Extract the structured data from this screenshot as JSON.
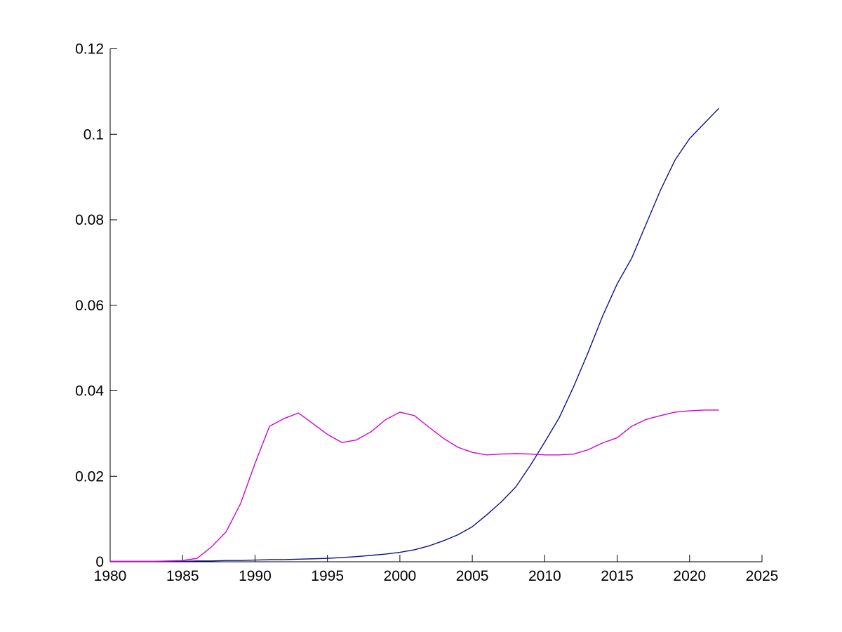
{
  "figure": {
    "background": "#ffffff",
    "axis_color": "#000000",
    "tick_label_color": "#000000"
  },
  "chart_data": {
    "type": "line",
    "title": "",
    "xlabel": "",
    "ylabel": "",
    "grid": false,
    "legend": "none",
    "box": "off",
    "xlim": [
      1980,
      2025
    ],
    "ylim": [
      0,
      0.12
    ],
    "x_ticks": [
      1980,
      1985,
      1990,
      1995,
      2000,
      2005,
      2010,
      2015,
      2020,
      2025
    ],
    "x_tick_labels": [
      "1980",
      "1985",
      "1990",
      "1995",
      "2000",
      "2005",
      "2010",
      "2015",
      "2020",
      "2025"
    ],
    "y_ticks": [
      0,
      0.02,
      0.04,
      0.06,
      0.08,
      0.1,
      0.12
    ],
    "y_tick_labels": [
      "0",
      "0.02",
      "0.04",
      "0.06",
      "0.08",
      "0.1",
      "0.12"
    ],
    "x": [
      1980,
      1981,
      1982,
      1983,
      1984,
      1985,
      1986,
      1987,
      1988,
      1989,
      1990,
      1991,
      1992,
      1993,
      1994,
      1995,
      1996,
      1997,
      1998,
      1999,
      2000,
      2001,
      2002,
      2003,
      2004,
      2005,
      2006,
      2007,
      2008,
      2009,
      2010,
      2011,
      2012,
      2013,
      2014,
      2015,
      2016,
      2017,
      2018,
      2019,
      2020,
      2021,
      2022
    ],
    "series": [
      {
        "name": "dark-blue-line",
        "color": "#10108F",
        "values": [
          0.0001,
          0.0001,
          0.0001,
          0.0001,
          0.0001,
          0.0001,
          0.0002,
          0.0002,
          0.0003,
          0.0003,
          0.0004,
          0.0005,
          0.0005,
          0.0006,
          0.0007,
          0.0008,
          0.001,
          0.0012,
          0.0015,
          0.0018,
          0.0022,
          0.0028,
          0.0037,
          0.0049,
          0.0063,
          0.0082,
          0.011,
          0.014,
          0.0175,
          0.0225,
          0.028,
          0.0337,
          0.041,
          0.049,
          0.0575,
          0.065,
          0.071,
          0.079,
          0.087,
          0.094,
          0.099,
          0.1025,
          0.106
        ]
      },
      {
        "name": "magenta-line",
        "color": "#D400D4",
        "values": [
          0.0001,
          0.0001,
          0.0001,
          0.0001,
          0.0002,
          0.0003,
          0.0008,
          0.0035,
          0.007,
          0.0136,
          0.023,
          0.0317,
          0.0335,
          0.0348,
          0.0323,
          0.0298,
          0.0279,
          0.0285,
          0.0304,
          0.0332,
          0.035,
          0.0342,
          0.0315,
          0.0289,
          0.0268,
          0.0256,
          0.025,
          0.0252,
          0.0253,
          0.0252,
          0.025,
          0.025,
          0.0252,
          0.0262,
          0.0278,
          0.029,
          0.0317,
          0.0333,
          0.0342,
          0.035,
          0.0353,
          0.0355,
          0.0355
        ]
      }
    ]
  }
}
